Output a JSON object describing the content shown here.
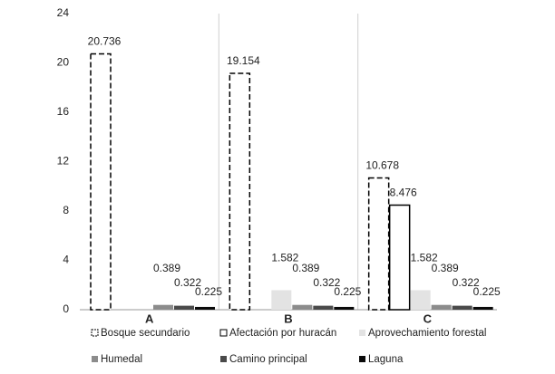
{
  "chart_data": {
    "type": "bar",
    "categories": [
      "A",
      "B",
      "C"
    ],
    "series": [
      {
        "name": "Bosque secundario",
        "color": "#ffffff",
        "outline": "#000000",
        "dashed": true,
        "values": [
          20.736,
          19.154,
          10.678
        ]
      },
      {
        "name": "Afectación por huracán",
        "color": "#ffffff",
        "outline": "#000000",
        "dashed": false,
        "values": [
          null,
          null,
          8.476
        ]
      },
      {
        "name": "Aprovechamiento forestal",
        "color": "#e3e3e3",
        "values": [
          null,
          1.582,
          1.582
        ]
      },
      {
        "name": "Humedal",
        "color": "#8c8c8c",
        "values": [
          0.389,
          0.389,
          0.389
        ]
      },
      {
        "name": "Camino principal",
        "color": "#4a4a4a",
        "values": [
          0.322,
          0.322,
          0.322
        ]
      },
      {
        "name": "Laguna",
        "color": "#0a0a0a",
        "values": [
          0.225,
          0.225,
          0.225
        ]
      }
    ],
    "ylim": [
      0,
      24
    ],
    "yticks": [
      0,
      4,
      8,
      12,
      16,
      20,
      24
    ],
    "grid": true,
    "legend": "bottom"
  }
}
